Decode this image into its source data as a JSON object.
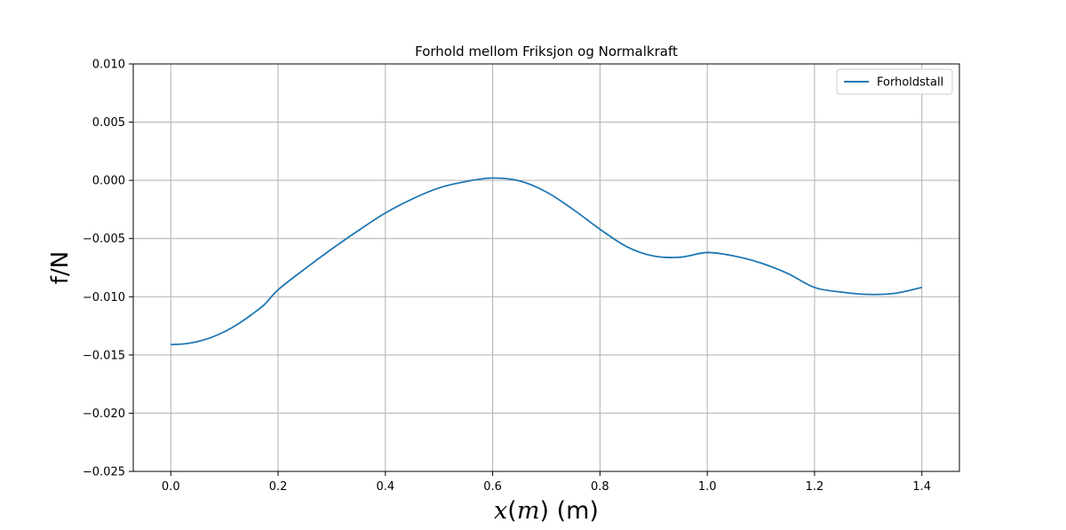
{
  "chart_data": {
    "type": "line",
    "title": "Forhold mellom Friksjon og Normalkraft",
    "xlabel": {
      "pre": "x",
      "open": "(",
      "var": "m",
      "close": ")",
      "unit": " (m)"
    },
    "ylabel": "f/N",
    "xlim": [
      -0.07,
      1.47
    ],
    "ylim": [
      -0.025,
      0.01
    ],
    "xticks": [
      0.0,
      0.2,
      0.4,
      0.6,
      0.8,
      1.0,
      1.2,
      1.4
    ],
    "xtick_labels": [
      "0.0",
      "0.2",
      "0.4",
      "0.6",
      "0.8",
      "1.0",
      "1.2",
      "1.4"
    ],
    "yticks": [
      -0.025,
      -0.02,
      -0.015,
      -0.01,
      -0.005,
      0.0,
      0.005,
      0.01
    ],
    "ytick_labels": [
      "−0.025",
      "−0.020",
      "−0.015",
      "−0.010",
      "−0.005",
      "0.000",
      "0.005",
      "0.010"
    ],
    "grid": true,
    "legend_position": "top-right",
    "series": [
      {
        "name": "Forholdstall",
        "color": "#1f77b4",
        "x": [
          0.0,
          0.025,
          0.05,
          0.075,
          0.1,
          0.125,
          0.15,
          0.175,
          0.2,
          0.25,
          0.3,
          0.35,
          0.4,
          0.45,
          0.5,
          0.55,
          0.6,
          0.65,
          0.7,
          0.75,
          0.8,
          0.85,
          0.9,
          0.95,
          1.0,
          1.05,
          1.1,
          1.15,
          1.2,
          1.25,
          1.3,
          1.35,
          1.4
        ],
        "y": [
          -0.0141,
          -0.01405,
          -0.01385,
          -0.0135,
          -0.013,
          -0.01235,
          -0.01155,
          -0.01065,
          -0.0094,
          -0.0076,
          -0.0059,
          -0.0043,
          -0.0028,
          -0.0016,
          -0.00065,
          -0.0001,
          0.0002,
          -5e-05,
          -0.001,
          -0.0025,
          -0.0042,
          -0.0057,
          -0.0065,
          -0.0066,
          -0.0062,
          -0.0065,
          -0.0071,
          -0.008,
          -0.0092,
          -0.0096,
          -0.0098,
          -0.0097,
          -0.0092
        ]
      }
    ]
  }
}
